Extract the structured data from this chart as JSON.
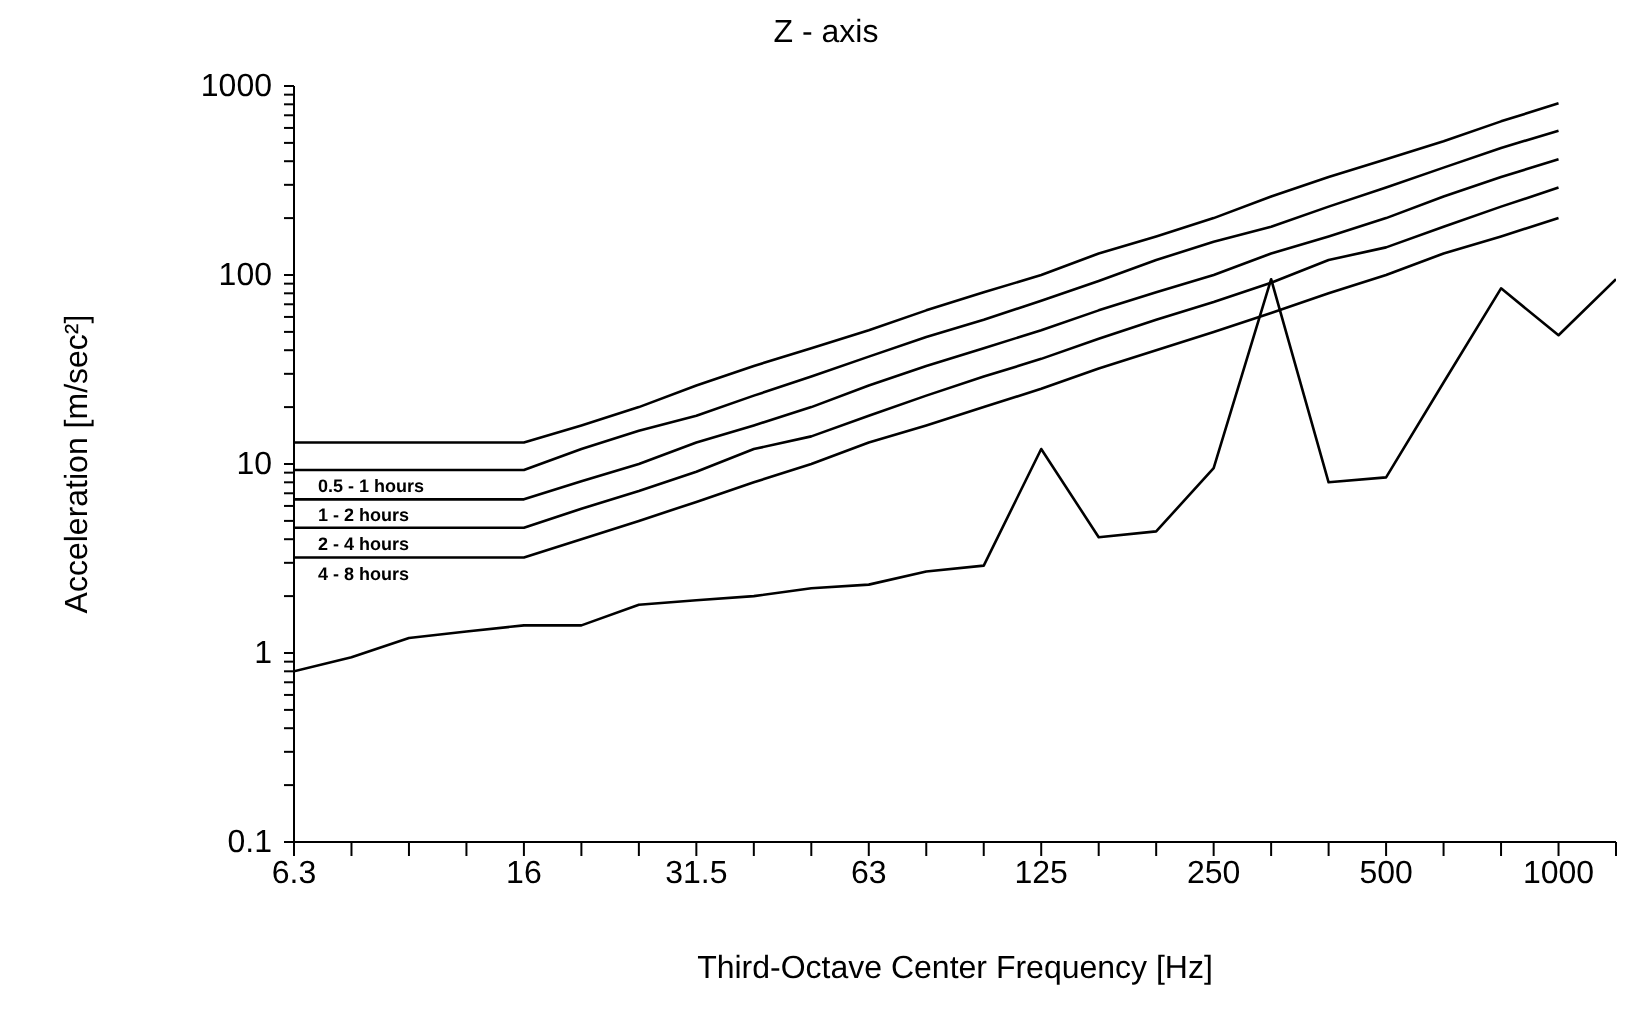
{
  "chart_data": {
    "type": "line",
    "title": "Z - axis",
    "xlabel": "Third-Octave Center Frequency [Hz]",
    "ylabel": "Acceleration [m/sec²]",
    "categories": [
      "6.3",
      null,
      null,
      null,
      "16",
      null,
      null,
      "31.5",
      null,
      null,
      "63",
      null,
      null,
      "125",
      null,
      null,
      "250",
      null,
      null,
      "500",
      null,
      null,
      "1000",
      null
    ],
    "series": [
      {
        "color": "#000000",
        "values": [
          13,
          13,
          13,
          13,
          13,
          16,
          20,
          26,
          33,
          41,
          51,
          65,
          81,
          100,
          130,
          160,
          200,
          260,
          330,
          410,
          510,
          650,
          810,
          null
        ]
      },
      {
        "name": "0.5 - 1 hours",
        "color": "#000000",
        "values": [
          9.3,
          9.3,
          9.3,
          9.3,
          9.3,
          12,
          15,
          18,
          23,
          29,
          37,
          47,
          58,
          73,
          93,
          120,
          150,
          180,
          230,
          290,
          370,
          470,
          580,
          null
        ]
      },
      {
        "name": "1 - 2 hours",
        "color": "#000000",
        "values": [
          6.5,
          6.5,
          6.5,
          6.5,
          6.5,
          8.1,
          10,
          13,
          16,
          20,
          26,
          33,
          41,
          51,
          65,
          81,
          100,
          130,
          160,
          200,
          260,
          330,
          410,
          null
        ]
      },
      {
        "name": "2 - 4 hours",
        "color": "#000000",
        "values": [
          4.6,
          4.6,
          4.6,
          4.6,
          4.6,
          5.8,
          7.2,
          9.1,
          12,
          14,
          18,
          23,
          29,
          36,
          46,
          58,
          72,
          91,
          120,
          140,
          180,
          230,
          290,
          null
        ]
      },
      {
        "name": "4 - 8 hours",
        "color": "#000000",
        "values": [
          3.2,
          3.2,
          3.2,
          3.2,
          3.2,
          4,
          5,
          6.3,
          8,
          10,
          13,
          16,
          20,
          25,
          32,
          40,
          50,
          63,
          80,
          100,
          130,
          160,
          200,
          null
        ]
      },
      {
        "color": "#000000",
        "values": [
          0.8,
          0.95,
          1.2,
          1.3,
          1.4,
          1.4,
          1.8,
          1.9,
          2.0,
          2.2,
          2.3,
          2.7,
          2.9,
          12,
          4.1,
          4.4,
          9.5,
          95,
          8,
          8.5,
          27,
          85,
          48,
          95
        ]
      }
    ],
    "log": "y",
    "ylim": [
      0.1,
      1000
    ],
    "yticks": [
      0.1,
      {
        "value": 0.2,
        "label": null
      },
      {
        "value": 0.3,
        "label": null
      },
      {
        "value": 0.4,
        "label": null
      },
      {
        "value": 0.5,
        "label": null
      },
      {
        "value": 0.6,
        "label": null
      },
      {
        "value": 0.7,
        "label": null
      },
      {
        "value": 0.8,
        "label": null
      },
      {
        "value": 0.9,
        "label": null
      },
      1,
      {
        "value": 2,
        "label": null
      },
      {
        "value": 3,
        "label": null
      },
      {
        "value": 4,
        "label": null
      },
      {
        "value": 5,
        "label": null
      },
      {
        "value": 6,
        "label": null
      },
      {
        "value": 7,
        "label": null
      },
      {
        "value": 8,
        "label": null
      },
      {
        "value": 9,
        "label": null
      },
      10,
      {
        "value": 20,
        "label": null
      },
      {
        "value": 30,
        "label": null
      },
      {
        "value": 40,
        "label": null
      },
      {
        "value": 50,
        "label": null
      },
      {
        "value": 60,
        "label": null
      },
      {
        "value": 70,
        "label": null
      },
      {
        "value": 80,
        "label": null
      },
      {
        "value": 90,
        "label": null
      },
      100,
      {
        "value": 200,
        "label": null
      },
      {
        "value": 300,
        "label": null
      },
      {
        "value": 400,
        "label": null
      },
      {
        "value": 500,
        "label": null
      },
      {
        "value": 600,
        "label": null
      },
      {
        "value": 700,
        "label": null
      },
      {
        "value": 800,
        "label": null
      },
      {
        "value": 900,
        "label": null
      },
      1000
    ],
    "grid": false,
    "legend": false,
    "marker": "none",
    "line_style": "solid"
  }
}
